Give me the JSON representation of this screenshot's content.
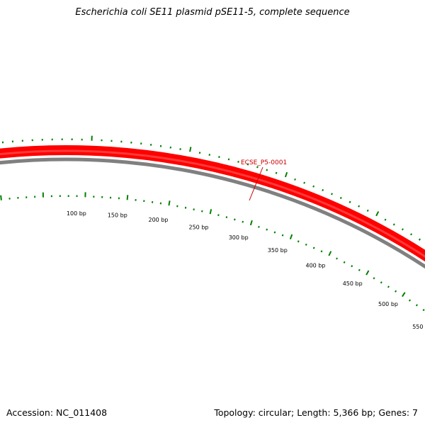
{
  "title": "Escherichia coli SE11 plasmid pSE11-5, complete sequence",
  "footer": {
    "accession": "Accession: NC_011408",
    "summary": "Topology: circular; Length: 5,366 bp; Genes: 7"
  },
  "colors": {
    "gene_forward": "#ff0000",
    "backbone": "#808080",
    "ticks": "#008000",
    "gene_label": "#cc0000"
  },
  "scale_labels": [
    "100 bp",
    "150 bp",
    "200 bp",
    "250 bp",
    "300 bp",
    "350 bp",
    "400 bp",
    "450 bp",
    "500 bp",
    "550 bp"
  ],
  "genes": [
    {
      "label": "ECSE_P5-0001",
      "strand": "forward"
    }
  ]
}
